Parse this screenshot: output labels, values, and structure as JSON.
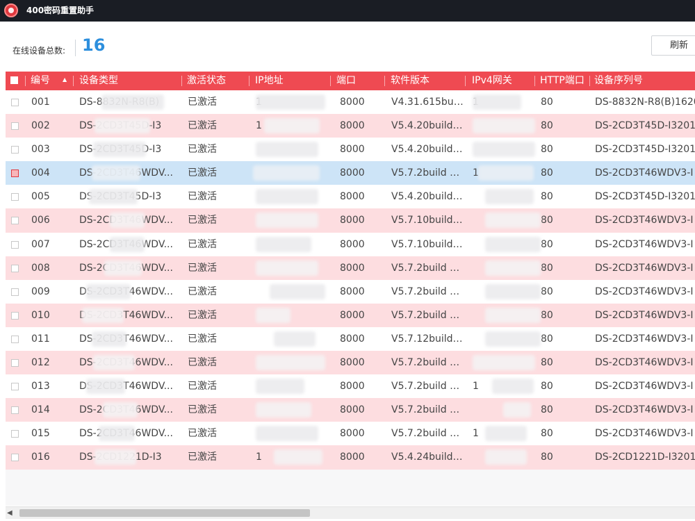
{
  "window": {
    "title": "400密码重置助手"
  },
  "toolbar": {
    "online_label": "在线设备总数:",
    "online_count": "16",
    "refresh_label": "刷新"
  },
  "table": {
    "columns": [
      "编号",
      "设备类型",
      "激活状态",
      "IP地址",
      "端口",
      "软件版本",
      "IPv4网关",
      "HTTP端口",
      "设备序列号"
    ],
    "rows": [
      {
        "no": "001",
        "type": "DS-8832N-R8(B)",
        "status": "已激活",
        "ip": "1",
        "port": "8000",
        "version": "V4.31.615bui...",
        "gw": "1",
        "http": "80",
        "serial": "DS-8832N-R8(B)1620",
        "checked": false,
        "selected": false
      },
      {
        "no": "002",
        "type": "DS-2CD3T45D-I3",
        "status": "已激活",
        "ip": "1",
        "port": "8000",
        "version": "V5.4.20build ...",
        "gw": "",
        "http": "80",
        "serial": "DS-2CD3T45D-I3201",
        "checked": false,
        "selected": false
      },
      {
        "no": "003",
        "type": "DS-2CD3T45D-I3",
        "status": "已激活",
        "ip": "",
        "port": "8000",
        "version": "V5.4.20build ...",
        "gw": "",
        "http": "80",
        "serial": "DS-2CD3T45D-I3201",
        "checked": false,
        "selected": false
      },
      {
        "no": "004",
        "type": "DS-2CD3T46WDV...",
        "status": "已激活",
        "ip": "",
        "port": "8000",
        "version": "V5.7.2build 2...",
        "gw": "1",
        "http": "80",
        "serial": "DS-2CD3T46WDV3-I",
        "checked": true,
        "selected": true
      },
      {
        "no": "005",
        "type": "DS-2CD3T45D-I3",
        "status": "已激活",
        "ip": "",
        "port": "8000",
        "version": "V5.4.20build ...",
        "gw": "",
        "http": "80",
        "serial": "DS-2CD3T45D-I3201",
        "checked": false,
        "selected": false
      },
      {
        "no": "006",
        "type": "DS-2CD3T46WDV...",
        "status": "已激活",
        "ip": "",
        "port": "8000",
        "version": "V5.7.10build ...",
        "gw": "",
        "http": "80",
        "serial": "DS-2CD3T46WDV3-I",
        "checked": false,
        "selected": false
      },
      {
        "no": "007",
        "type": "DS-2CD3T46WDV...",
        "status": "已激活",
        "ip": "",
        "port": "8000",
        "version": "V5.7.10build ...",
        "gw": "",
        "http": "80",
        "serial": "DS-2CD3T46WDV3-I",
        "checked": false,
        "selected": false
      },
      {
        "no": "008",
        "type": "DS-2CD3T46WDV...",
        "status": "已激活",
        "ip": "",
        "port": "8000",
        "version": "V5.7.2build 2...",
        "gw": "",
        "http": "80",
        "serial": "DS-2CD3T46WDV3-I",
        "checked": false,
        "selected": false
      },
      {
        "no": "009",
        "type": "DS-2CD3T46WDV...",
        "status": "已激活",
        "ip": "",
        "port": "8000",
        "version": "V5.7.2build 2...",
        "gw": "",
        "http": "80",
        "serial": "DS-2CD3T46WDV3-I",
        "checked": false,
        "selected": false
      },
      {
        "no": "010",
        "type": "DS-2CD3T46WDV...",
        "status": "已激活",
        "ip": "",
        "port": "8000",
        "version": "V5.7.2build 2...",
        "gw": "",
        "http": "80",
        "serial": "DS-2CD3T46WDV3-I",
        "checked": false,
        "selected": false
      },
      {
        "no": "011",
        "type": "DS-2CD3T46WDV...",
        "status": "已激活",
        "ip": "",
        "port": "8000",
        "version": "V5.7.12build ...",
        "gw": "",
        "http": "80",
        "serial": "DS-2CD3T46WDV3-I",
        "checked": false,
        "selected": false
      },
      {
        "no": "012",
        "type": "DS-2CD3T46WDV...",
        "status": "已激活",
        "ip": "",
        "port": "8000",
        "version": "V5.7.2build 2...",
        "gw": "",
        "http": "80",
        "serial": "DS-2CD3T46WDV3-I",
        "checked": false,
        "selected": false
      },
      {
        "no": "013",
        "type": "DS-2CD3T46WDV...",
        "status": "已激活",
        "ip": "",
        "port": "8000",
        "version": "V5.7.2build 2...",
        "gw": "1",
        "http": "80",
        "serial": "DS-2CD3T46WDV3-I",
        "checked": false,
        "selected": false
      },
      {
        "no": "014",
        "type": "DS-2CD3T46WDV...",
        "status": "已激活",
        "ip": "",
        "port": "8000",
        "version": "V5.7.2build 2...",
        "gw": "",
        "http": "80",
        "serial": "DS-2CD3T46WDV3-I",
        "checked": false,
        "selected": false
      },
      {
        "no": "015",
        "type": "DS-2CD3T46WDV...",
        "status": "已激活",
        "ip": "",
        "port": "8000",
        "version": "V5.7.2build 2...",
        "gw": "1",
        "http": "80",
        "serial": "DS-2CD3T46WDV3-I",
        "checked": false,
        "selected": false
      },
      {
        "no": "016",
        "type": "DS-2CD1221D-I3",
        "status": "已激活",
        "ip": "1",
        "port": "8000",
        "version": "V5.4.24build ...",
        "gw": "",
        "http": "80",
        "serial": "DS-2CD1221D-I3201",
        "checked": false,
        "selected": false
      }
    ]
  },
  "colors": {
    "header_bg": "#ef4a52",
    "stripe": "#fddde0",
    "selected": "#cde4f7",
    "count": "#2d8fdd",
    "titlebar": "#1a1d24"
  }
}
